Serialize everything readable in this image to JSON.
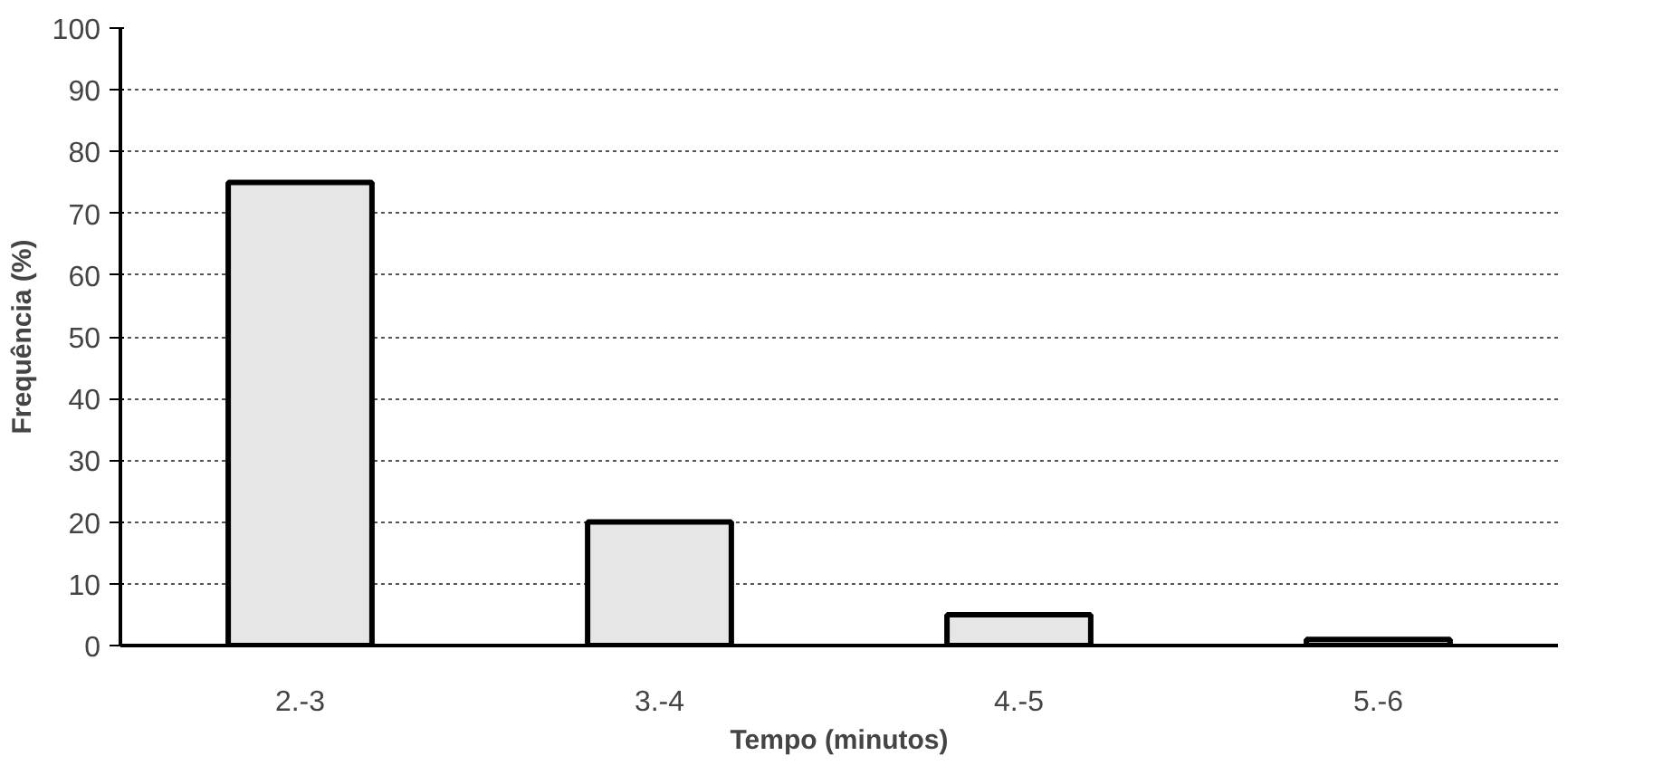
{
  "chart_data": {
    "type": "bar",
    "xlabel": "Tempo (minutos)",
    "ylabel": "Frequência (%)",
    "categories": [
      "2.-3",
      "3.-4",
      "4.-5",
      "5.-6"
    ],
    "values": [
      75,
      20,
      5,
      1
    ],
    "color": "#e6e6e6",
    "ylim": [
      0,
      100
    ],
    "yticks": [
      0,
      10,
      20,
      30,
      40,
      50,
      60,
      70,
      80,
      90,
      100
    ],
    "grid": "y"
  }
}
